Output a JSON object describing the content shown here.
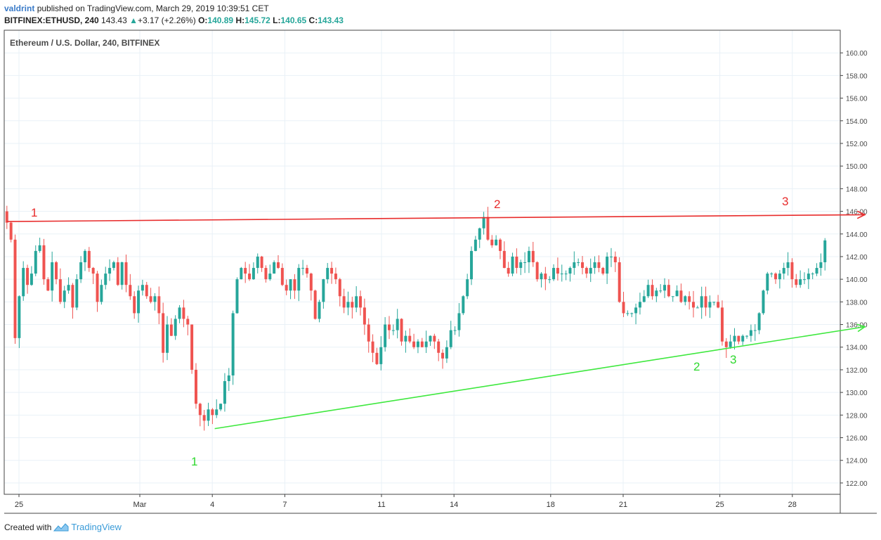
{
  "header": {
    "author": "valdrint",
    "published": "published on TradingView.com, March 29, 2019 10:39:51 CET",
    "symbol": "BITFINEX:ETHUSD, 240",
    "last": "143.43",
    "change": "+3.17 (+2.26%)",
    "o_label": "O:",
    "o_value": "140.89",
    "h_label": "H:",
    "h_value": "145.72",
    "l_label": "L:",
    "l_value": "140.65",
    "c_label": "C:",
    "c_value": "143.43"
  },
  "footer": {
    "created_with": "Created with",
    "brand": "TradingView"
  },
  "colors": {
    "up": "#26a69a",
    "down": "#ef5350",
    "resistance": "#e82c2c",
    "support": "#3ee83e",
    "grid": "#e9f1f7"
  },
  "chart_data": {
    "type": "candlestick",
    "title": "Ethereum / U.S. Dollar, 240, BITFINEX",
    "ylim": [
      121,
      162
    ],
    "y_ticks": [
      "160.00",
      "158.00",
      "156.00",
      "154.00",
      "152.00",
      "150.00",
      "148.00",
      "146.00",
      "144.00",
      "142.00",
      "140.00",
      "138.00",
      "136.00",
      "134.00",
      "132.00",
      "130.00",
      "128.00",
      "126.00",
      "124.00",
      "122.00"
    ],
    "x_ticks": [
      {
        "label": "25",
        "day": -4
      },
      {
        "label": "Mar",
        "day": 1
      },
      {
        "label": "4",
        "day": 4
      },
      {
        "label": "7",
        "day": 7
      },
      {
        "label": "11",
        "day": 11
      },
      {
        "label": "14",
        "day": 14
      },
      {
        "label": "18",
        "day": 18
      },
      {
        "label": "21",
        "day": 21
      },
      {
        "label": "25",
        "day": 25
      },
      {
        "label": "28",
        "day": 28
      }
    ],
    "closes": [
      145,
      143.5,
      134.8,
      138.5,
      141,
      139.5,
      140.5,
      142.5,
      143,
      140,
      139,
      141.5,
      140,
      138,
      139,
      139.5,
      137.5,
      140,
      141.5,
      142.5,
      141,
      140.5,
      138,
      139.5,
      140.5,
      141,
      141.5,
      139.5,
      141.5,
      139.5,
      138.5,
      137,
      139,
      139.5,
      138.5,
      138,
      138.5,
      137,
      133.5,
      136,
      135,
      136.5,
      137.5,
      136.5,
      136,
      132,
      129,
      128,
      127.5,
      128.5,
      128,
      128.5,
      129,
      131,
      131.5,
      137,
      140,
      141,
      140.5,
      140,
      141,
      142,
      141,
      140,
      140.5,
      141.5,
      141,
      139.5,
      139,
      140,
      139,
      141,
      141,
      140.5,
      139,
      136.5,
      138,
      140,
      141,
      140.5,
      140,
      138.5,
      137.5,
      138,
      137.5,
      138.5,
      137.5,
      136,
      134.5,
      133.5,
      132.5,
      134,
      136,
      135.5,
      135.5,
      136.5,
      134.5,
      135,
      134.5,
      134,
      134.5,
      134,
      134.5,
      135,
      134.5,
      133.5,
      133,
      134,
      135.5,
      135.5,
      137,
      138.5,
      140,
      142.5,
      143.5,
      144.5,
      145.5,
      143.5,
      143,
      143.5,
      142.5,
      141,
      140.5,
      142,
      141,
      141.5,
      141.5,
      142.5,
      141.5,
      140,
      140.5,
      140,
      140,
      141,
      140.5,
      140.5,
      140.5,
      141,
      141.5,
      141.5,
      141,
      140.5,
      141,
      141.5,
      141,
      140.5,
      142,
      142,
      141.5,
      138,
      137,
      137,
      137,
      137.5,
      138,
      138.5,
      139.5,
      138.5,
      139,
      139,
      139.5,
      138.5,
      138.5,
      139,
      138,
      138.5,
      138,
      137.5,
      137.5,
      138.5,
      137.5,
      138,
      138,
      137.5,
      134.5,
      134,
      134.5,
      135,
      134.5,
      135,
      135,
      135.5,
      135.5,
      137,
      139,
      140.5,
      140.5,
      140,
      140.5,
      141,
      141.5,
      140,
      139.5,
      140,
      140,
      140.5,
      140.5,
      141,
      141.5,
      143.43
    ],
    "annotations": {
      "resistance": {
        "color": "red",
        "label_left": "1",
        "label_mid": "2",
        "label_right": "3",
        "from_day": -4.5,
        "from_price": 145.1,
        "to_day": 31,
        "to_price": 145.7
      },
      "support": {
        "color": "green",
        "label_left": "1",
        "label_mid": "2",
        "label_right": "3",
        "from_day": 4.1,
        "from_price": 126.8,
        "to_day": 31,
        "to_price": 135.8
      }
    }
  }
}
